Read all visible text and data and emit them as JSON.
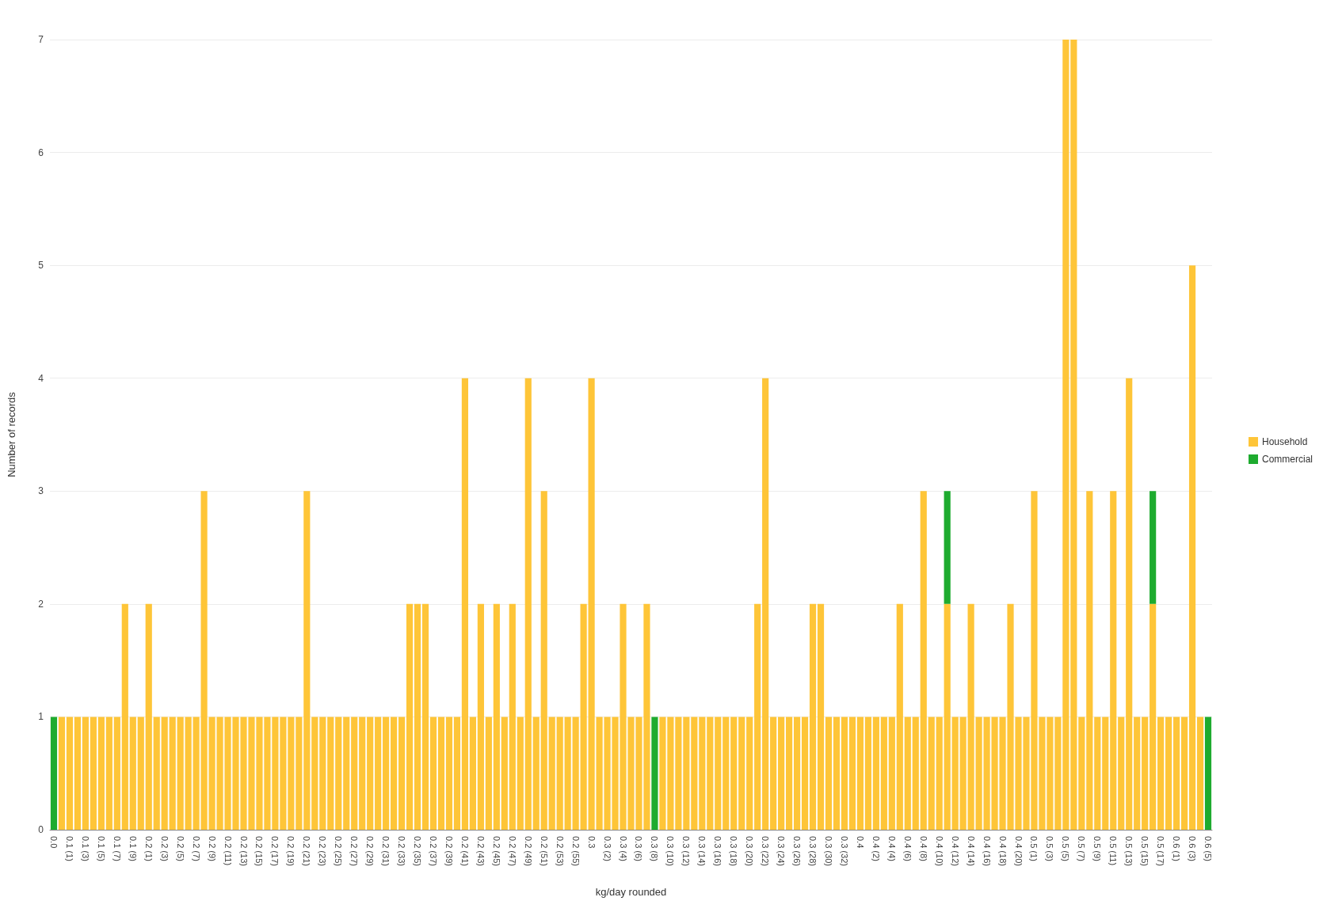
{
  "chart_data": {
    "type": "bar",
    "stacked": true,
    "xlabel": "kg/day rounded",
    "ylabel": "Number of records",
    "categories": [
      "0.0",
      null,
      "0.1 (1)",
      null,
      "0.1 (3)",
      null,
      "0.1 (5)",
      null,
      "0.1 (7)",
      null,
      "0.1 (9)",
      null,
      "0.2 (1)",
      null,
      "0.2 (3)",
      null,
      "0.2 (5)",
      null,
      "0.2 (7)",
      null,
      "0.2 (9)",
      null,
      "0.2 (11)",
      null,
      "0.2 (13)",
      null,
      "0.2 (15)",
      null,
      "0.2 (17)",
      null,
      "0.2 (19)",
      null,
      "0.2 (21)",
      null,
      "0.2 (23)",
      null,
      "0.2 (25)",
      null,
      "0.2 (27)",
      null,
      "0.2 (29)",
      null,
      "0.2 (31)",
      null,
      "0.2 (33)",
      null,
      "0.2 (35)",
      null,
      "0.2 (37)",
      null,
      "0.2 (39)",
      null,
      "0.2 (41)",
      null,
      "0.2 (43)",
      null,
      "0.2 (45)",
      null,
      "0.2 (47)",
      null,
      "0.2 (49)",
      null,
      "0.2 (51)",
      null,
      "0.2 (53)",
      null,
      "0.2 (55)",
      null,
      "0.3",
      null,
      "0.3 (2)",
      null,
      "0.3 (4)",
      null,
      "0.3 (6)",
      null,
      "0.3 (8)",
      null,
      "0.3 (10)",
      null,
      "0.3 (12)",
      null,
      "0.3 (14)",
      null,
      "0.3 (16)",
      null,
      "0.3 (18)",
      null,
      "0.3 (20)",
      null,
      "0.3 (22)",
      null,
      "0.3 (24)",
      null,
      "0.3 (26)",
      null,
      "0.3 (28)",
      null,
      "0.3 (30)",
      null,
      "0.3 (32)",
      null,
      "0.4",
      null,
      "0.4 (2)",
      null,
      "0.4 (4)",
      null,
      "0.4 (6)",
      null,
      "0.4 (8)",
      null,
      "0.4 (10)",
      null,
      "0.4 (12)",
      null,
      "0.4 (14)",
      null,
      "0.4 (16)",
      null,
      "0.4 (18)",
      null,
      "0.4 (20)",
      null,
      "0.5 (1)",
      null,
      "0.5 (3)",
      null,
      "0.5 (5)",
      null,
      "0.5 (7)",
      null,
      "0.5 (9)",
      null,
      "0.5 (11)",
      null,
      "0.5 (13)",
      null,
      "0.5 (15)",
      null,
      "0.5 (17)",
      null,
      "0.6 (1)",
      null,
      "0.6 (3)",
      null,
      "0.6 (5)"
    ],
    "series": [
      {
        "name": "Household",
        "color": "#fec538",
        "values": [
          null,
          1,
          1,
          1,
          1,
          1,
          1,
          1,
          1,
          2,
          1,
          1,
          2,
          1,
          1,
          1,
          1,
          1,
          1,
          3,
          1,
          1,
          1,
          1,
          1,
          1,
          1,
          1,
          1,
          1,
          1,
          1,
          3,
          1,
          1,
          1,
          1,
          1,
          1,
          1,
          1,
          1,
          1,
          1,
          1,
          2,
          2,
          2,
          1,
          1,
          1,
          1,
          4,
          1,
          2,
          1,
          2,
          1,
          2,
          1,
          4,
          1,
          3,
          1,
          1,
          1,
          1,
          2,
          4,
          1,
          1,
          1,
          2,
          1,
          1,
          2,
          null,
          1,
          1,
          1,
          1,
          1,
          1,
          1,
          1,
          1,
          1,
          1,
          1,
          2,
          4,
          1,
          1,
          1,
          1,
          1,
          2,
          2,
          1,
          1,
          1,
          1,
          1,
          1,
          1,
          1,
          1,
          2,
          1,
          1,
          3,
          1,
          1,
          2,
          1,
          1,
          2,
          1,
          1,
          1,
          1,
          2,
          1,
          1,
          3,
          1,
          1,
          1,
          7,
          7,
          1,
          3,
          1,
          1,
          3,
          1,
          4,
          1,
          1,
          2,
          1,
          1,
          1,
          1,
          5,
          1,
          null
        ]
      },
      {
        "name": "Commercial",
        "color": "#1eab2f",
        "values": [
          1,
          null,
          null,
          null,
          null,
          null,
          null,
          null,
          null,
          null,
          null,
          null,
          null,
          null,
          null,
          null,
          null,
          null,
          null,
          null,
          null,
          null,
          null,
          null,
          null,
          null,
          null,
          null,
          null,
          null,
          null,
          null,
          null,
          null,
          null,
          null,
          null,
          null,
          null,
          null,
          null,
          null,
          null,
          null,
          null,
          null,
          null,
          null,
          null,
          null,
          null,
          null,
          null,
          null,
          null,
          null,
          null,
          null,
          null,
          null,
          null,
          null,
          null,
          null,
          null,
          null,
          null,
          null,
          null,
          null,
          null,
          null,
          null,
          null,
          null,
          null,
          1,
          null,
          null,
          null,
          null,
          null,
          null,
          null,
          null,
          null,
          null,
          null,
          null,
          null,
          null,
          null,
          null,
          null,
          null,
          null,
          null,
          null,
          null,
          null,
          null,
          null,
          null,
          null,
          null,
          null,
          null,
          null,
          null,
          null,
          null,
          null,
          null,
          1,
          null,
          null,
          null,
          null,
          null,
          null,
          null,
          null,
          null,
          null,
          null,
          null,
          null,
          null,
          null,
          null,
          null,
          null,
          null,
          null,
          null,
          null,
          null,
          null,
          null,
          1,
          null,
          null,
          null,
          null,
          null,
          null,
          1
        ]
      }
    ],
    "ylim": [
      0,
      7
    ],
    "yticks": [
      0,
      1,
      2,
      3,
      4,
      5,
      6,
      7
    ],
    "grid": "y",
    "legend": "right"
  }
}
